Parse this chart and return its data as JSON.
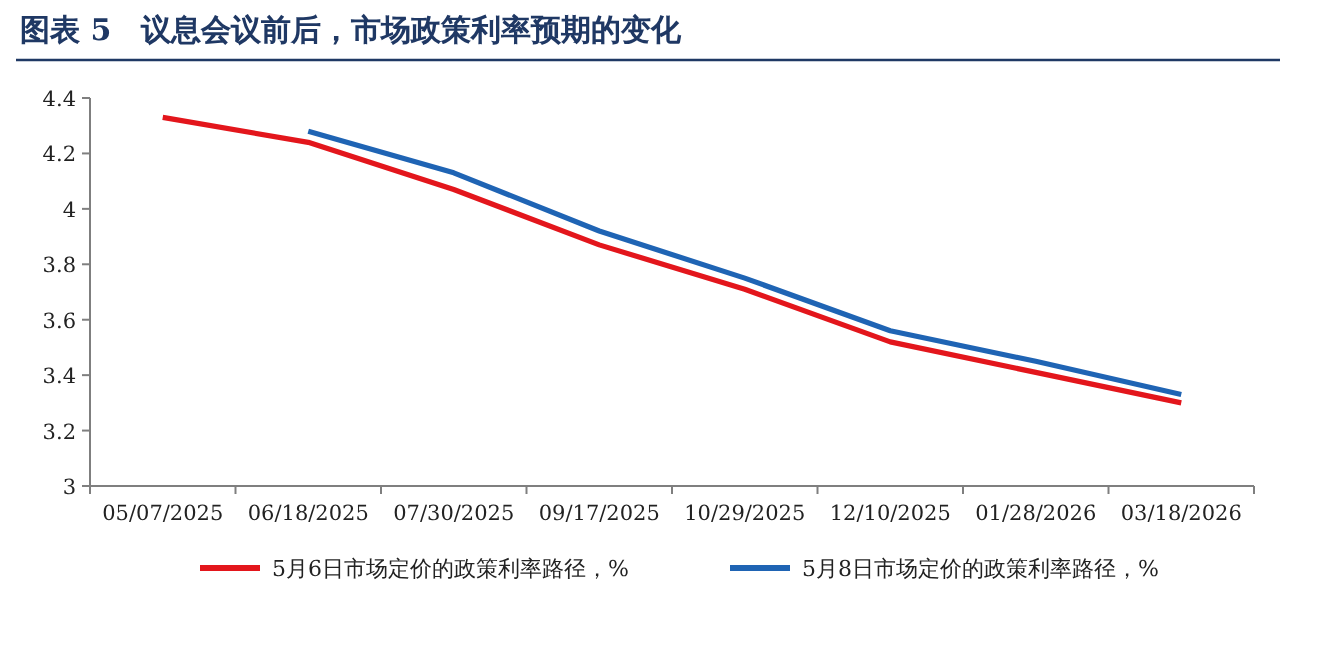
{
  "chart_data": {
    "type": "line",
    "title": "图表 5　议息会议前后，市场政策利率预期的变化",
    "categories": [
      "05/07/2025",
      "06/18/2025",
      "07/30/2025",
      "09/17/2025",
      "10/29/2025",
      "12/10/2025",
      "01/28/2026",
      "03/18/2026"
    ],
    "series": [
      {
        "name": "5月6日市场定价的政策利率路径，%",
        "color": "#e3161c",
        "values": [
          4.33,
          4.24,
          4.07,
          3.87,
          3.71,
          3.52,
          3.41,
          3.3
        ]
      },
      {
        "name": "5月8日市场定价的政策利率路径，%",
        "color": "#1f64b4",
        "values": [
          null,
          4.28,
          4.13,
          3.92,
          3.75,
          3.56,
          3.45,
          3.33
        ]
      }
    ],
    "ylim": [
      3,
      4.4
    ],
    "yticks": [
      3,
      3.2,
      3.4,
      3.6,
      3.8,
      4,
      4.2,
      4.4
    ],
    "grid": false,
    "legend": "bottom",
    "marker": "none",
    "line_style": "solid"
  }
}
